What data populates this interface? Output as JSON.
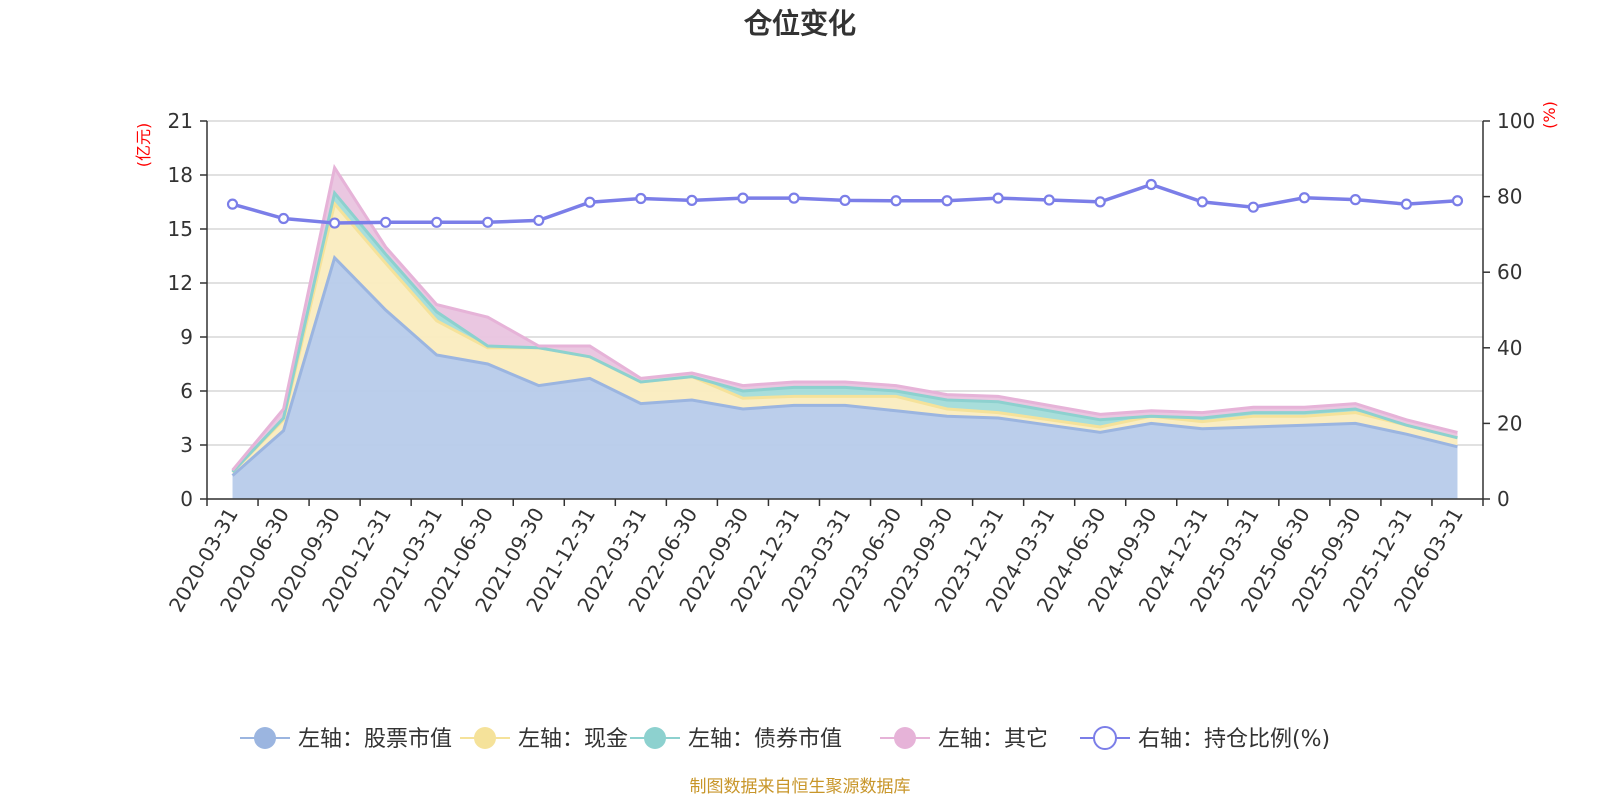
{
  "chart_data": {
    "type": "area",
    "title": "仓位变化",
    "left_axis_unit": "(亿元)",
    "right_axis_unit": "(%)",
    "left_ylim": [
      0,
      21
    ],
    "left_ticks": [
      0,
      3,
      6,
      9,
      12,
      15,
      18,
      21
    ],
    "right_ylim": [
      0,
      100
    ],
    "right_ticks": [
      0,
      20,
      40,
      60,
      80,
      100
    ],
    "categories": [
      "2020-03-31",
      "2020-06-30",
      "2020-09-30",
      "2020-12-31",
      "2021-03-31",
      "2021-06-30",
      "2021-09-30",
      "2021-12-31",
      "2022-03-31",
      "2022-06-30",
      "2022-09-30",
      "2022-12-31",
      "2023-03-31",
      "2023-06-30",
      "2023-09-30",
      "2023-12-31",
      "2024-03-31",
      "2024-06-30",
      "2024-09-30",
      "2024-12-31",
      "2025-03-31",
      "2025-06-30",
      "2025-09-30",
      "2025-12-31",
      "2026-03-31"
    ],
    "series": [
      {
        "name": "左轴：股票市值",
        "axis": "left",
        "stack": true,
        "color": "#9bb5e0",
        "fill": "#b7cbea",
        "values": [
          1.3,
          3.8,
          13.4,
          10.5,
          8.0,
          7.5,
          6.3,
          6.7,
          5.3,
          5.5,
          5.0,
          5.2,
          5.2,
          4.9,
          4.6,
          4.5,
          4.1,
          3.7,
          4.2,
          3.9,
          4.0,
          4.1,
          4.2,
          3.6,
          2.9
        ]
      },
      {
        "name": "左轴：现金",
        "axis": "left",
        "stack": true,
        "color": "#f5e29a",
        "fill": "#faecbf",
        "values": [
          0.2,
          0.6,
          3.0,
          2.6,
          1.9,
          0.9,
          2.1,
          1.2,
          1.2,
          1.3,
          0.6,
          0.5,
          0.5,
          0.8,
          0.4,
          0.3,
          0.3,
          0.3,
          0.4,
          0.4,
          0.6,
          0.5,
          0.6,
          0.5,
          0.5
        ]
      },
      {
        "name": "左轴：债券市值",
        "axis": "left",
        "stack": true,
        "color": "#8dd1cf",
        "fill": "#a3dcd9",
        "values": [
          0.0,
          0.1,
          0.6,
          0.5,
          0.5,
          0.1,
          0.0,
          0.0,
          0.0,
          0.0,
          0.4,
          0.5,
          0.5,
          0.3,
          0.5,
          0.6,
          0.5,
          0.4,
          0.0,
          0.2,
          0.2,
          0.2,
          0.2,
          0.0,
          0.0
        ]
      },
      {
        "name": "左轴：其它",
        "axis": "left",
        "stack": true,
        "color": "#e6b3d8",
        "fill": "#e9c4df",
        "values": [
          0.1,
          0.5,
          1.4,
          0.4,
          0.4,
          1.6,
          0.1,
          0.6,
          0.2,
          0.2,
          0.3,
          0.3,
          0.3,
          0.3,
          0.3,
          0.3,
          0.3,
          0.3,
          0.3,
          0.3,
          0.3,
          0.3,
          0.3,
          0.3,
          0.3
        ]
      },
      {
        "name": "右轴：持仓比例(%)",
        "axis": "right",
        "stack": false,
        "color": "#7b7ee8",
        "values": [
          78.0,
          74.2,
          73.0,
          73.2,
          73.2,
          73.2,
          73.7,
          78.5,
          79.5,
          79.0,
          79.6,
          79.6,
          79.0,
          78.9,
          78.9,
          79.6,
          79.1,
          78.6,
          83.2,
          78.6,
          77.2,
          79.7,
          79.2,
          78.0,
          78.9
        ]
      }
    ],
    "legend_position": "bottom",
    "grid": true
  },
  "source_note": "制图数据来自恒生聚源数据库"
}
